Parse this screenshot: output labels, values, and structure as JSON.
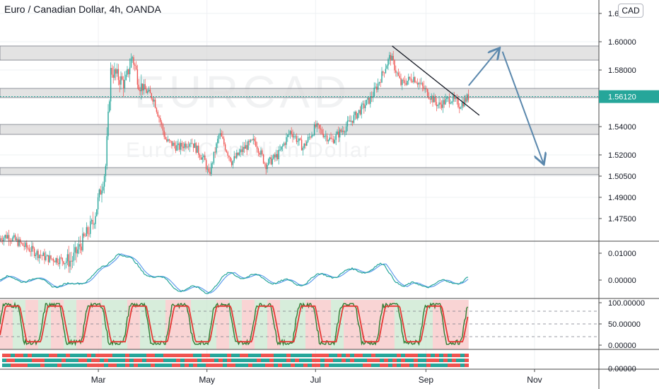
{
  "header": {
    "title": "Euro / Canadian Dollar, 4h, OANDA",
    "currency_button": "CAD",
    "watermark_symbol": "EURCAD",
    "watermark_name": "Euro / Canadian Dollar"
  },
  "colors": {
    "up": "#26a69a",
    "down": "#ef5350",
    "grid": "#eef0f3",
    "text": "#131722",
    "price_badge": "#26a69a",
    "arrow": "#5b88ad",
    "macd": "#26a69a",
    "signal": "#5d9cec",
    "stoch_k": "#2e7d32",
    "stoch_d": "#e53935",
    "zone_fill": "#d9d9d9",
    "zone_edge": "#787b86"
  },
  "chart_data": [
    {
      "panel": "price",
      "type": "candlestick",
      "time_range": [
        "2020-01-01",
        "2020-11-30"
      ],
      "x_tick_labels": [
        "Mar",
        "May",
        "Jul",
        "Sep",
        "Nov"
      ],
      "x_ticks": [
        "2020-03-01",
        "2020-05-01",
        "2020-07-01",
        "2020-09-01",
        "2020-11-01"
      ],
      "y_tick_labels": [
        "1.47500",
        "1.49000",
        "1.50500",
        "1.52000",
        "1.54000",
        "1.58000",
        "1.60000",
        "1.6"
      ],
      "y_ticks": [
        1.475,
        1.49,
        1.505,
        1.52,
        1.54,
        1.58,
        1.6,
        1.62
      ],
      "last_price_label": "1.56120",
      "last_price": 1.5612,
      "path_points": [
        [
          "2020-01-01",
          1.459
        ],
        [
          "2020-01-10",
          1.463
        ],
        [
          "2020-01-20",
          1.455
        ],
        [
          "2020-02-01",
          1.447
        ],
        [
          "2020-02-15",
          1.445
        ],
        [
          "2020-02-27",
          1.472
        ],
        [
          "2020-03-05",
          1.51
        ],
        [
          "2020-03-08",
          1.58
        ],
        [
          "2020-03-12",
          1.575
        ],
        [
          "2020-03-16",
          1.57
        ],
        [
          "2020-03-20",
          1.59
        ],
        [
          "2020-03-24",
          1.57
        ],
        [
          "2020-04-01",
          1.56
        ],
        [
          "2020-04-08",
          1.53
        ],
        [
          "2020-04-15",
          1.525
        ],
        [
          "2020-04-22",
          1.53
        ],
        [
          "2020-04-30",
          1.515
        ],
        [
          "2020-05-02",
          1.505
        ],
        [
          "2020-05-08",
          1.535
        ],
        [
          "2020-05-15",
          1.515
        ],
        [
          "2020-05-22",
          1.525
        ],
        [
          "2020-05-28",
          1.53
        ],
        [
          "2020-06-03",
          1.513
        ],
        [
          "2020-06-10",
          1.52
        ],
        [
          "2020-06-17",
          1.537
        ],
        [
          "2020-06-24",
          1.525
        ],
        [
          "2020-07-01",
          1.54
        ],
        [
          "2020-07-10",
          1.53
        ],
        [
          "2020-07-18",
          1.54
        ],
        [
          "2020-07-25",
          1.55
        ],
        [
          "2020-08-01",
          1.56
        ],
        [
          "2020-08-05",
          1.57
        ],
        [
          "2020-08-12",
          1.59
        ],
        [
          "2020-08-18",
          1.57
        ],
        [
          "2020-08-25",
          1.575
        ],
        [
          "2020-09-01",
          1.565
        ],
        [
          "2020-09-08",
          1.555
        ],
        [
          "2020-09-15",
          1.56
        ],
        [
          "2020-09-20",
          1.555
        ],
        [
          "2020-09-25",
          1.5612
        ]
      ],
      "zones": [
        {
          "from": 1.587,
          "to": 1.597
        },
        {
          "from": 1.5605,
          "to": 1.567
        },
        {
          "from": 1.5345,
          "to": 1.5415
        },
        {
          "from": 1.506,
          "to": 1.511
        }
      ],
      "annotations": {
        "trendline": [
          [
            "2020-08-13",
            1.597
          ],
          [
            "2020-10-01",
            1.548
          ]
        ],
        "arrow_up": [
          [
            "2020-09-25",
            1.569
          ],
          [
            "2020-10-12",
            1.595
          ]
        ],
        "arrow_down": [
          [
            "2020-10-14",
            1.593
          ],
          [
            "2020-11-06",
            1.514
          ]
        ]
      }
    },
    {
      "panel": "macd",
      "type": "line",
      "y_tick_labels": [
        "0.01000",
        "0.00000"
      ],
      "y_ticks": [
        0.01,
        0.0
      ],
      "y_range": [
        -0.0055,
        0.0105
      ],
      "path_points": [
        [
          "2020-01-01",
          0.0
        ],
        [
          "2020-01-20",
          0.0005
        ],
        [
          "2020-02-15",
          -0.0025
        ],
        [
          "2020-03-05",
          0.0045
        ],
        [
          "2020-03-12",
          0.011
        ],
        [
          "2020-03-25",
          0.004
        ],
        [
          "2020-04-15",
          -0.003
        ],
        [
          "2020-05-01",
          -0.004
        ],
        [
          "2020-05-15",
          0.0025
        ],
        [
          "2020-06-01",
          0.0005
        ],
        [
          "2020-06-20",
          -0.0015
        ],
        [
          "2020-07-01",
          0.001
        ],
        [
          "2020-07-20",
          0.003
        ],
        [
          "2020-08-08",
          0.005
        ],
        [
          "2020-08-20",
          -0.0025
        ],
        [
          "2020-09-01",
          -0.0015
        ],
        [
          "2020-09-15",
          -0.001
        ],
        [
          "2020-09-25",
          0.001
        ]
      ]
    },
    {
      "panel": "stochastic",
      "type": "line",
      "y_tick_labels": [
        "100.00000",
        "50.00000",
        "0.00000"
      ],
      "y_ticks": [
        100,
        50,
        0
      ],
      "levels": [
        80,
        50,
        20
      ],
      "y_range": [
        -8,
        108
      ]
    },
    {
      "panel": "signal_bars",
      "type": "heatmap",
      "y_tick_labels": [
        "0.00000"
      ],
      "y_ticks": [
        0
      ]
    }
  ]
}
